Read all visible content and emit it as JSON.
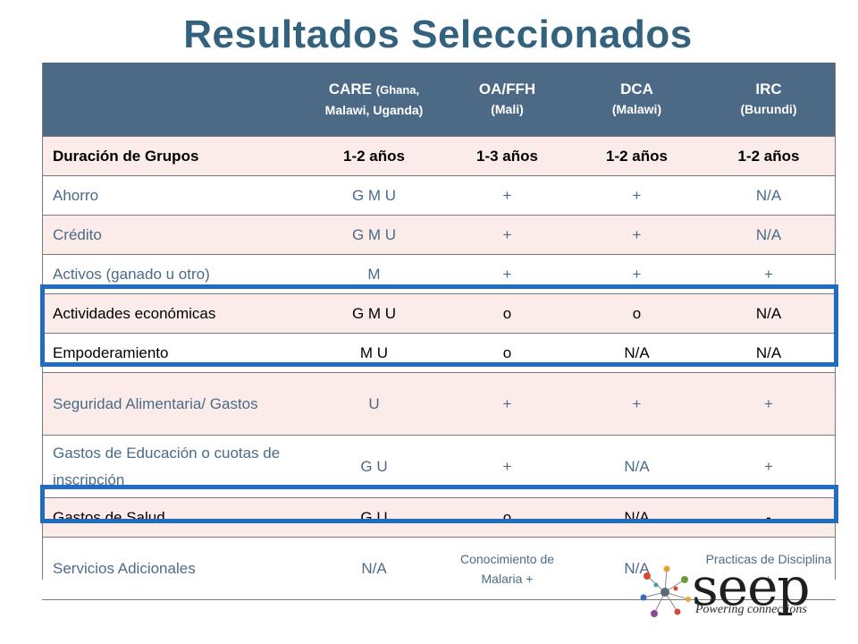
{
  "title": "Resultados Seleccionados",
  "header": {
    "care": {
      "main": "CARE",
      "inline": "(Ghana,",
      "sub": "Malawi, Uganda)"
    },
    "oa": {
      "main": "OA/FFH",
      "sub": "(Mali)"
    },
    "dca": {
      "main": "DCA",
      "sub": "(Malawi)"
    },
    "irc": {
      "main": "IRC",
      "sub": "(Burundi)"
    }
  },
  "rows": [
    {
      "label": "Duración de Grupos",
      "c1": "1-2 años",
      "c2": "1-3 años",
      "c3": "1-2 años",
      "c4": "1-2 años"
    },
    {
      "label": "Ahorro",
      "c1": "G M U",
      "c2": "+",
      "c3": "+",
      "c4": "N/A"
    },
    {
      "label": "Crédito",
      "c1": "G M U",
      "c2": "+",
      "c3": "+",
      "c4": "N/A"
    },
    {
      "label": "Activos (ganado u otro)",
      "c1": "M",
      "c2": "+",
      "c3": "+",
      "c4": "+"
    },
    {
      "label": "Actividades económicas",
      "c1": "G M U",
      "c2": "o",
      "c3": "o",
      "c4": "N/A"
    },
    {
      "label": "Empoderamiento",
      "c1": "M U",
      "c2": "o",
      "c3": "N/A",
      "c4": "N/A"
    },
    {
      "label": "Seguridad Alimentaria/ Gastos",
      "c1": "U",
      "c2": "+",
      "c3": "+",
      "c4": "+"
    },
    {
      "label": "Gastos de Educación o cuotas de inscripción",
      "c1": "G U",
      "c2": "+",
      "c3": "N/A",
      "c4": "+"
    },
    {
      "label": "Gastos de Salud",
      "c1": "G U",
      "c2": "o",
      "c3": "N/A",
      "c4": "-"
    },
    {
      "label": "Servicios Adicionales",
      "c1": "N/A",
      "c2": "Conocimiento de Malaria +",
      "c3": "N/A",
      "c4": "Practicas de Disciplina +"
    }
  ],
  "logo": {
    "word": "seep",
    "tagline": "Powering connections"
  },
  "colors": {
    "title": "#33627e",
    "header_bg": "#4c6a86",
    "row_pink": "#fbece9",
    "highlight": "#1f6cc0",
    "text_blue": "#4b6b88"
  }
}
